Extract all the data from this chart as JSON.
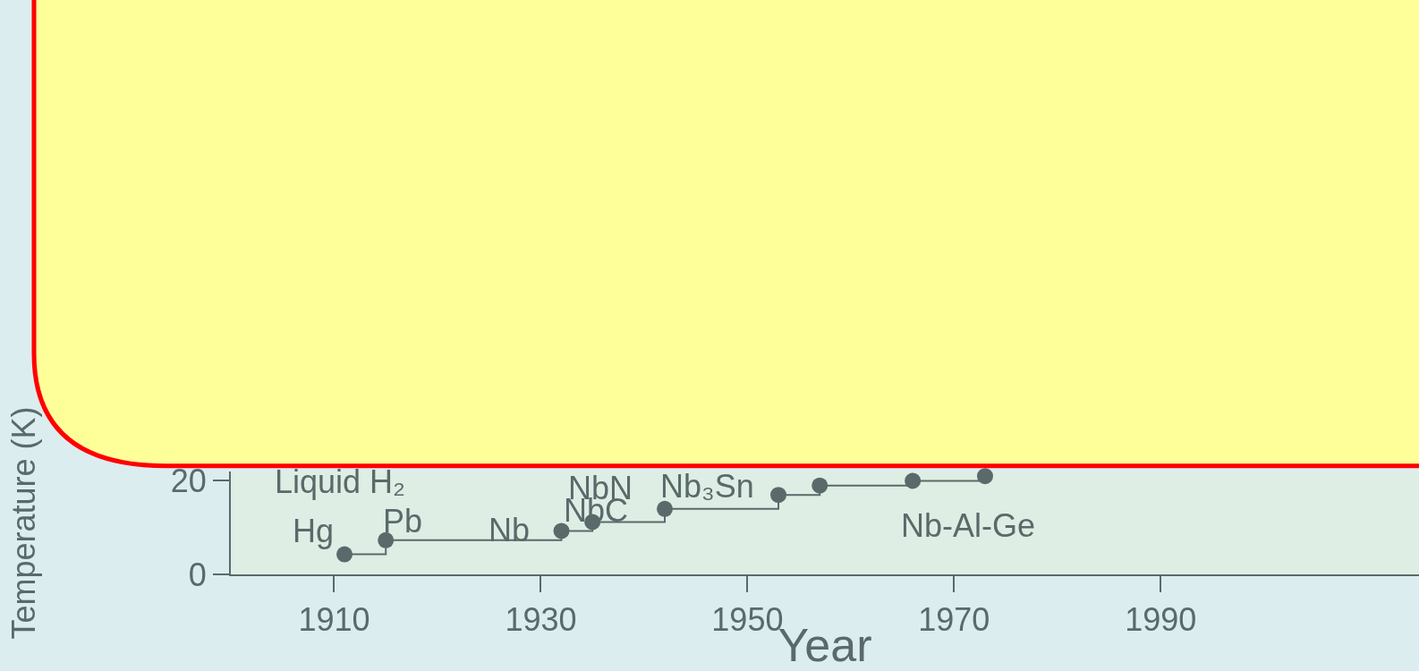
{
  "chart_data": {
    "type": "step",
    "xlabel": "Year",
    "ylabel": "Temperature (K)",
    "x": [
      1911,
      1915,
      1932,
      1935,
      1942,
      1953,
      1957,
      1966,
      1973
    ],
    "values": [
      4.3,
      7.3,
      9.3,
      11.2,
      14,
      17,
      19,
      20,
      21
    ],
    "color": "#5a6a6b",
    "marker": "circle",
    "grid": false,
    "xlim": [
      1900,
      2015
    ],
    "ylim": [
      0,
      22
    ],
    "xticks": [
      1910,
      1930,
      1950,
      1970,
      1990
    ],
    "yticks": [
      0,
      20
    ],
    "annotations": [
      {
        "text": "Hg",
        "x": 1911,
        "y": 4.3
      },
      {
        "text": "Pb",
        "x": 1915,
        "y": 7.3
      },
      {
        "text": "Nb",
        "x": 1932,
        "y": 9.3
      },
      {
        "text": "NbC",
        "x": 1935,
        "y": 11.2
      },
      {
        "text": "NbN",
        "x": 1942,
        "y": 14
      },
      {
        "text": "Nb₃Sn",
        "x": 1953,
        "y": 17
      },
      {
        "text": "Nb-Al-Ge",
        "x": 1966,
        "y": 20
      },
      "Liquid H₂"
    ]
  }
}
